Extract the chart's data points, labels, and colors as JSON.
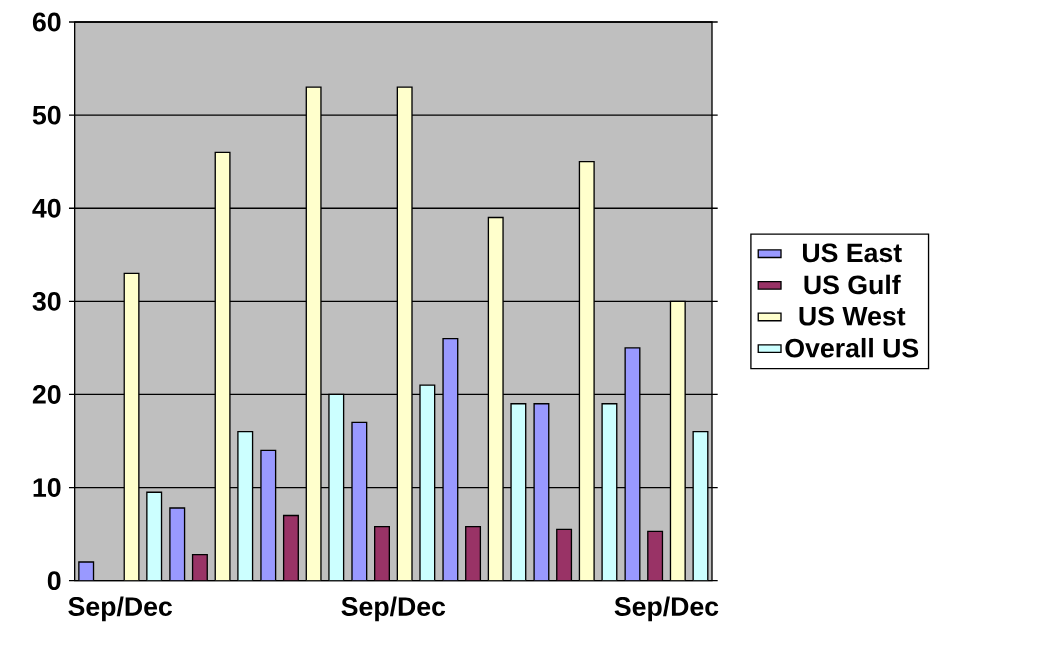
{
  "chart_data": {
    "type": "bar",
    "categories": [
      "Sep/Dec",
      null,
      null,
      "Sep/Dec",
      null,
      null,
      "Sep/Dec"
    ],
    "series": [
      {
        "name": "US East",
        "color": "#9999ff",
        "values": [
          2,
          7.8,
          14,
          17,
          26,
          19,
          25
        ]
      },
      {
        "name": "US Gulf",
        "color": "#993366",
        "values": [
          0,
          2.8,
          7,
          5.8,
          5.8,
          5.5,
          5.3
        ]
      },
      {
        "name": "US West",
        "color": "#ffffcc",
        "values": [
          33,
          46,
          53,
          53,
          39,
          45,
          30
        ]
      },
      {
        "name": "Overall US",
        "color": "#ccffff",
        "values": [
          9.5,
          16,
          20,
          21,
          19,
          19,
          16
        ]
      }
    ],
    "ylim": [
      0,
      60
    ],
    "yticks": [
      0,
      10,
      20,
      30,
      40,
      50,
      60
    ],
    "grid": "y",
    "legend": "right"
  }
}
